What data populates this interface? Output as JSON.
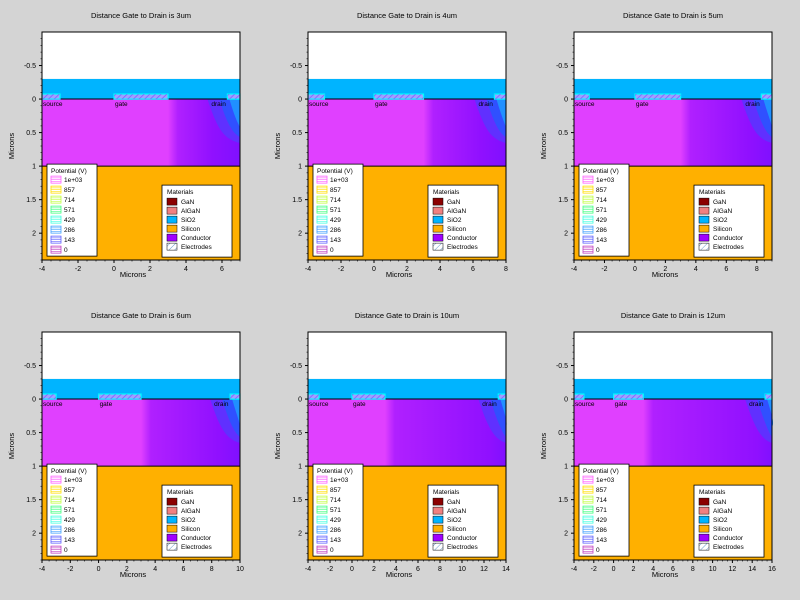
{
  "colors": {
    "background": "#d4d4d4",
    "sio2": "#00b4ff",
    "silicon": "#ffb000",
    "conductor": "#a000ff",
    "gan": "#8b0000",
    "algan": "#f08080",
    "potential_high": "#ff40ff",
    "potential_low": "#2040ff",
    "contact": "#00ffff"
  },
  "chart_data": [
    {
      "type": "heatmap",
      "title": "Distance Gate to Drain is 3um",
      "xlabel": "Microns",
      "ylabel": "Microns",
      "xlim": [
        -4,
        7
      ],
      "ylim": [
        -1,
        2.4
      ],
      "xticks": [
        -4,
        -2,
        0,
        2,
        4,
        6
      ],
      "yticks": [
        -0.5,
        0,
        0.5,
        1,
        1.5,
        2
      ],
      "gate": [
        0,
        3
      ],
      "source": [
        -4,
        -3
      ],
      "drain": [
        6.3,
        7
      ],
      "labels": [
        "source",
        "gate",
        "drain"
      ],
      "legend_potential": {
        "title": "Potential (V)",
        "entries": [
          "1e+03",
          "857",
          "714",
          "571",
          "429",
          "286",
          "143",
          "0"
        ]
      },
      "legend_materials": {
        "title": "Materials",
        "entries": [
          "GaN",
          "AlGaN",
          "SiO2",
          "Silicon",
          "Conductor",
          "Electrodes"
        ]
      }
    },
    {
      "type": "heatmap",
      "title": "Distance Gate to Drain is 4um",
      "xlabel": "Microns",
      "ylabel": "Microns",
      "xlim": [
        -4,
        8
      ],
      "ylim": [
        -1,
        2.4
      ],
      "xticks": [
        -4,
        -2,
        0,
        2,
        4,
        6,
        8
      ],
      "yticks": [
        -0.5,
        0,
        0.5,
        1,
        1.5,
        2
      ],
      "gate": [
        0,
        3
      ],
      "source": [
        -4,
        -3
      ],
      "drain": [
        7.3,
        8
      ],
      "labels": [
        "source",
        "gate",
        "drain"
      ],
      "legend_potential": {
        "title": "Potential (V)",
        "entries": [
          "1e+03",
          "857",
          "714",
          "571",
          "429",
          "286",
          "143",
          "0"
        ]
      },
      "legend_materials": {
        "title": "Materials",
        "entries": [
          "GaN",
          "AlGaN",
          "SiO2",
          "Silicon",
          "Conductor",
          "Electrodes"
        ]
      }
    },
    {
      "type": "heatmap",
      "title": "Distance Gate to Drain is 5um",
      "xlabel": "Microns",
      "ylabel": "Microns",
      "xlim": [
        -4,
        9
      ],
      "ylim": [
        -1,
        2.4
      ],
      "xticks": [
        -4,
        -2,
        0,
        2,
        4,
        6,
        8
      ],
      "yticks": [
        -0.5,
        0,
        0.5,
        1,
        1.5,
        2
      ],
      "gate": [
        0,
        3
      ],
      "source": [
        -4,
        -3
      ],
      "drain": [
        8.3,
        9
      ],
      "labels": [
        "source",
        "gate",
        "drain"
      ],
      "legend_potential": {
        "title": "Potential (V)",
        "entries": [
          "1e+03",
          "857",
          "714",
          "571",
          "429",
          "286",
          "143",
          "0"
        ]
      },
      "legend_materials": {
        "title": "Materials",
        "entries": [
          "GaN",
          "AlGaN",
          "SiO2",
          "Silicon",
          "Conductor",
          "Electrodes"
        ]
      }
    },
    {
      "type": "heatmap",
      "title": "Distance Gate to Drain is 6um",
      "xlabel": "Microns",
      "ylabel": "Microns",
      "xlim": [
        -4,
        10
      ],
      "ylim": [
        -1,
        2.4
      ],
      "xticks": [
        -4,
        -2,
        0,
        2,
        4,
        6,
        8,
        10
      ],
      "yticks": [
        -0.5,
        0,
        0.5,
        1,
        1.5,
        2
      ],
      "gate": [
        0,
        3
      ],
      "source": [
        -4,
        -3
      ],
      "drain": [
        9.3,
        10
      ],
      "labels": [
        "source",
        "gate",
        "drain"
      ],
      "legend_potential": {
        "title": "Potential (V)",
        "entries": [
          "1e+03",
          "857",
          "714",
          "571",
          "429",
          "286",
          "143",
          "0"
        ]
      },
      "legend_materials": {
        "title": "Materials",
        "entries": [
          "GaN",
          "AlGaN",
          "SiO2",
          "Silicon",
          "Conductor",
          "Electrodes"
        ]
      }
    },
    {
      "type": "heatmap",
      "title": "Distance Gate to Drain is 10um",
      "xlabel": "Microns",
      "ylabel": "Microns",
      "xlim": [
        -4,
        14
      ],
      "ylim": [
        -1,
        2.4
      ],
      "xticks": [
        -4,
        -2,
        0,
        2,
        4,
        6,
        8,
        10,
        12,
        14
      ],
      "yticks": [
        -0.5,
        0,
        0.5,
        1,
        1.5,
        2
      ],
      "gate": [
        0,
        3
      ],
      "source": [
        -4,
        -3
      ],
      "drain": [
        13.3,
        14
      ],
      "labels": [
        "source",
        "gate",
        "drain"
      ],
      "legend_potential": {
        "title": "Potential (V)",
        "entries": [
          "1e+03",
          "857",
          "714",
          "571",
          "429",
          "286",
          "143",
          "0"
        ]
      },
      "legend_materials": {
        "title": "Materials",
        "entries": [
          "GaN",
          "AlGaN",
          "SiO2",
          "Silicon",
          "Conductor",
          "Electrodes"
        ]
      }
    },
    {
      "type": "heatmap",
      "title": "Distance Gate to Drain is 12um",
      "xlabel": "Microns",
      "ylabel": "Microns",
      "xlim": [
        -4,
        16
      ],
      "ylim": [
        -1,
        2.4
      ],
      "xticks": [
        -4,
        -2,
        0,
        2,
        4,
        6,
        8,
        10,
        12,
        14,
        16
      ],
      "yticks": [
        -0.5,
        0,
        0.5,
        1,
        1.5,
        2
      ],
      "gate": [
        0,
        3
      ],
      "source": [
        -4,
        -3
      ],
      "drain": [
        15.3,
        16
      ],
      "labels": [
        "source",
        "gate",
        "drain"
      ],
      "legend_potential": {
        "title": "Potential (V)",
        "entries": [
          "1e+03",
          "857",
          "714",
          "571",
          "429",
          "286",
          "143",
          "0"
        ]
      },
      "legend_materials": {
        "title": "Materials",
        "entries": [
          "GaN",
          "AlGaN",
          "SiO2",
          "Silicon",
          "Conductor",
          "Electrodes"
        ]
      }
    }
  ]
}
